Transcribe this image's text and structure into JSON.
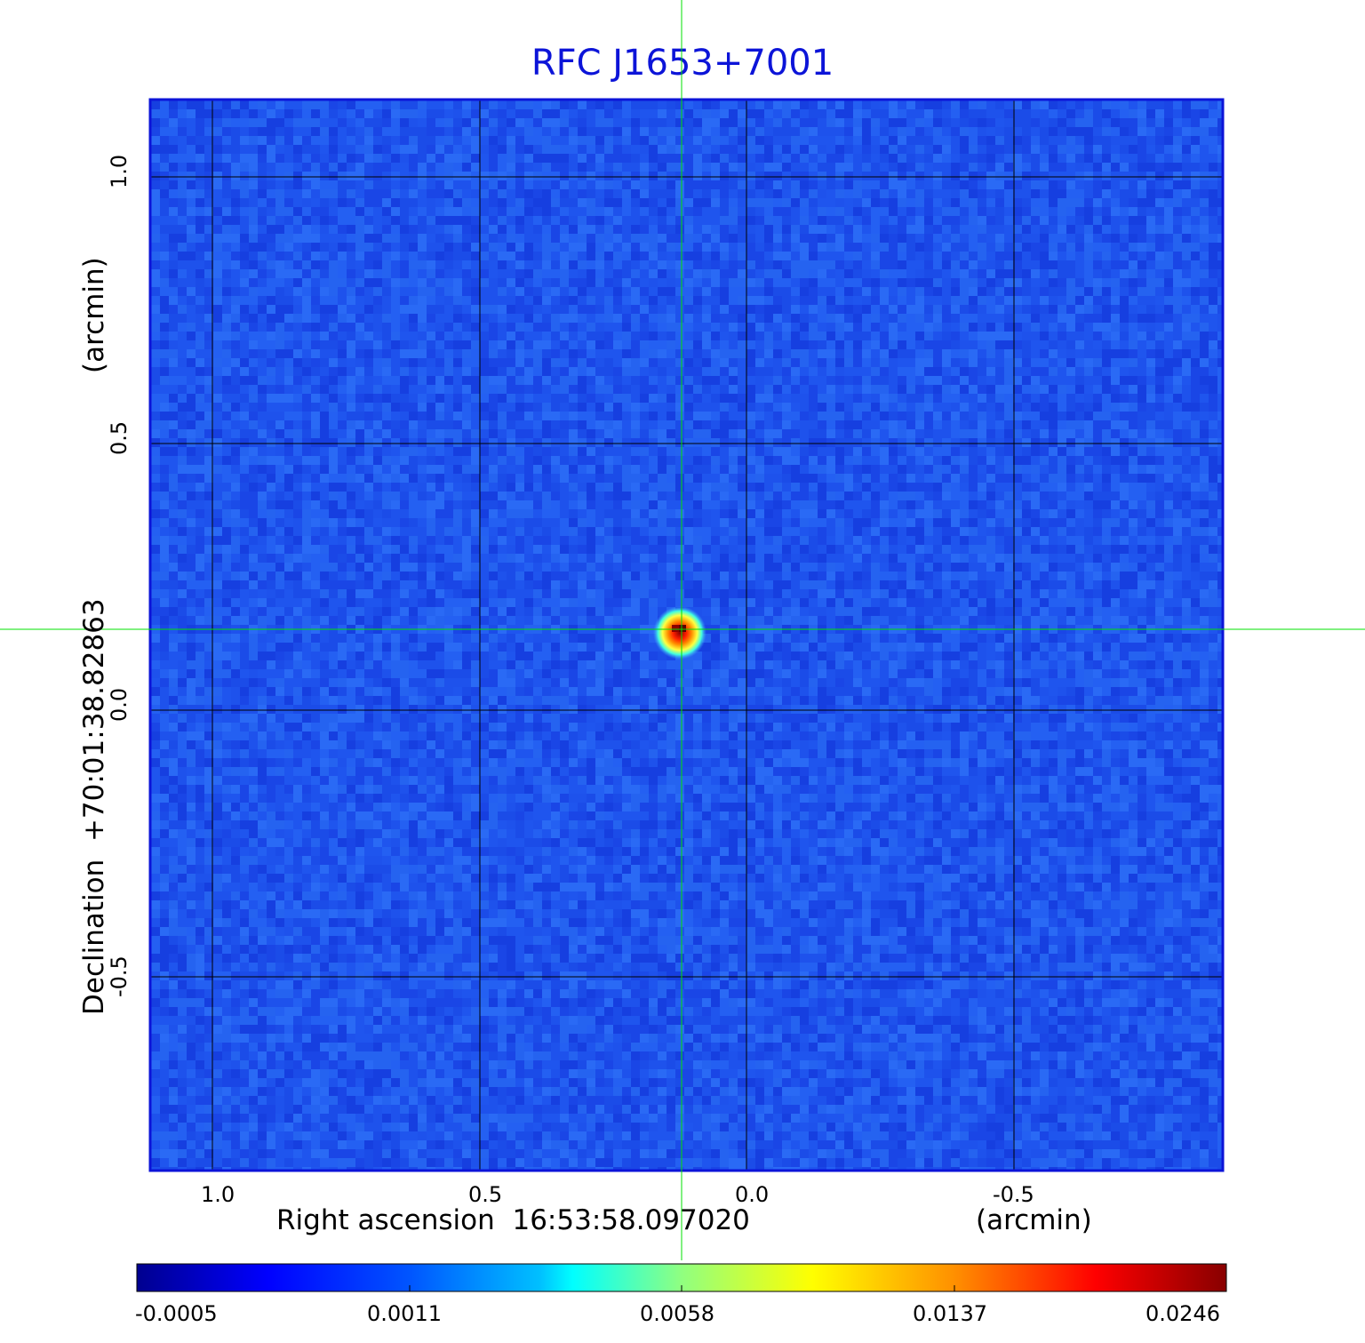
{
  "title": "RFC J1653+7001",
  "x_axis": {
    "label": "Right ascension  16:53:58.097020",
    "unit": "(arcmin)",
    "ticks": [
      "1.0",
      "0.5",
      "0.0",
      "-0.5"
    ]
  },
  "y_axis": {
    "label": "Declination  +70:01:38.82863",
    "unit": "(arcmin)",
    "ticks": [
      "1.0",
      "0.5",
      "0.0",
      "-0.5"
    ]
  },
  "colorbar": {
    "ticks": [
      "-0.0005",
      "0.0011",
      "0.0058",
      "0.0137",
      "0.0246"
    ],
    "colormap": [
      "#00008f",
      "#0000ff",
      "#00a0ff",
      "#00ffff",
      "#80ff80",
      "#ffff00",
      "#ff8000",
      "#ff0000",
      "#800000"
    ]
  },
  "image": {
    "background_color": "#1f55ee",
    "source_peak_color": "#a00000",
    "crosshair_color": "#00e000",
    "grid_color": "#000000",
    "frame_color": "#0c14d8"
  }
}
